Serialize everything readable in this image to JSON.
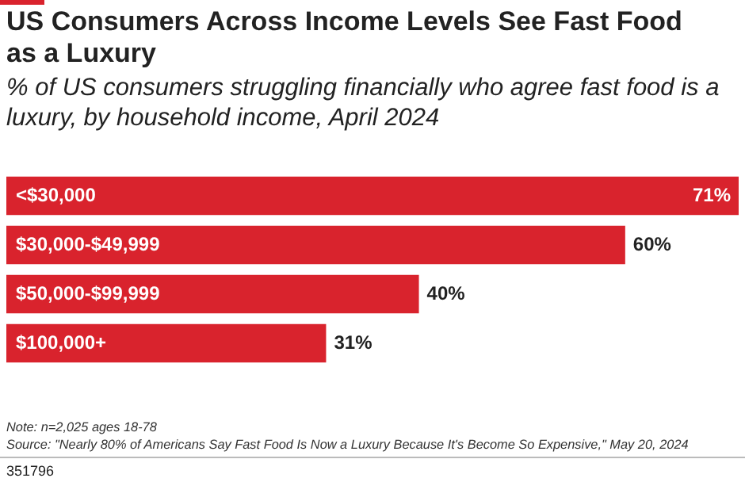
{
  "chart_data": {
    "type": "bar",
    "orientation": "horizontal",
    "title": "US Consumers Across Income Levels See Fast Food as a Luxury",
    "subtitle": "% of US consumers struggling financially who agree fast food is a luxury, by household income, April 2024",
    "categories": [
      "<$30,000",
      "$30,000-$49,999",
      "$50,000-$99,999",
      "$100,000+"
    ],
    "values": [
      71,
      60,
      40,
      31
    ],
    "value_labels": [
      "71%",
      "60%",
      "40%",
      "31%"
    ],
    "color": "#d9232d",
    "annotations": [
      "Note: n=2,025 ages 18-78",
      "Source: \"Nearly 80% of Americans Say Fast Food Is Now a Luxury Because It's Become So Expensive,\" May 20, 2024",
      "351796"
    ]
  }
}
